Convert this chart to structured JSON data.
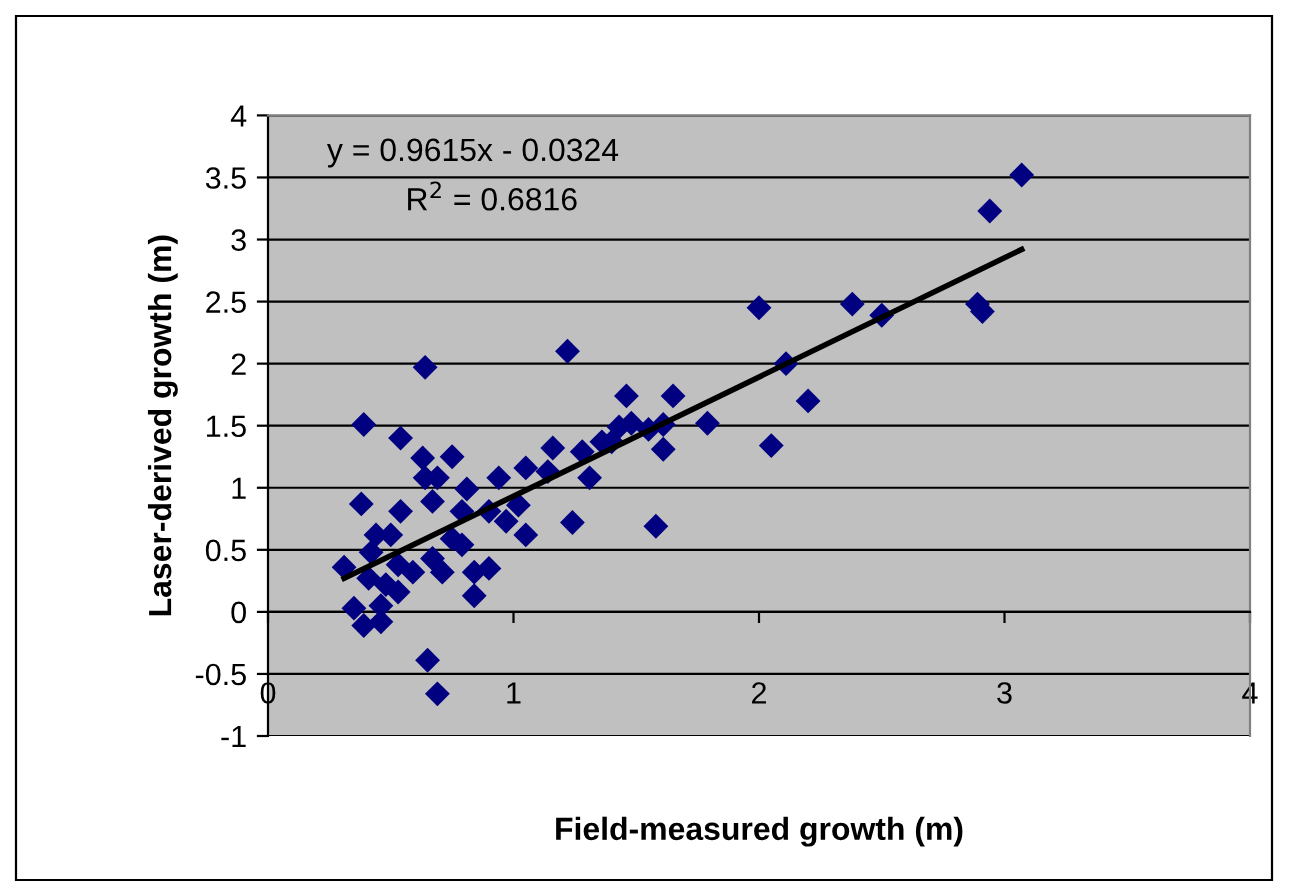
{
  "chart_data": {
    "type": "scatter",
    "xlabel": "Field-measured growth (m)",
    "ylabel": "Laser-derived growth (m)",
    "xlim": [
      0,
      4
    ],
    "ylim": [
      -1,
      4
    ],
    "xticks": [
      0,
      1,
      2,
      3,
      4
    ],
    "yticks": [
      -1,
      -0.5,
      0,
      0.5,
      1,
      1.5,
      2,
      2.5,
      3,
      3.5,
      4
    ],
    "grid": "y",
    "marker": "diamond",
    "legend": false,
    "annotations": [
      "y = 0.9615x - 0.0324",
      "R$^{2}$ = 0.6816"
    ],
    "series": [
      {
        "color": "#000080",
        "x": [
          3.07,
          2.94,
          2.89,
          2.91,
          2.38,
          2.5,
          2.0,
          2.11,
          2.2,
          2.05,
          1.79,
          1.65,
          1.46,
          1.61,
          1.61,
          1.58,
          1.55,
          1.48,
          1.43,
          1.4,
          1.36,
          1.28,
          1.31,
          1.24,
          1.22,
          1.16,
          1.14,
          1.05,
          1.05,
          1.02,
          0.97,
          0.94,
          0.9,
          0.9,
          0.84,
          0.84,
          0.81,
          0.79,
          0.79,
          0.75,
          0.75,
          0.71,
          0.69,
          0.67,
          0.64,
          0.63,
          0.64,
          0.67,
          0.65,
          0.69,
          0.59,
          0.53,
          0.54,
          0.54,
          0.5,
          0.44,
          0.42,
          0.41,
          0.48,
          0.46,
          0.46,
          0.38,
          0.39,
          0.31,
          0.35,
          0.39,
          0.53
        ],
        "values": [
          3.52,
          3.23,
          2.48,
          2.42,
          2.48,
          2.39,
          2.45,
          2.0,
          1.7,
          1.34,
          1.52,
          1.74,
          1.74,
          1.51,
          1.31,
          0.69,
          1.47,
          1.52,
          1.49,
          1.37,
          1.37,
          1.29,
          1.08,
          0.72,
          2.1,
          1.32,
          1.13,
          1.16,
          0.62,
          0.86,
          0.73,
          1.08,
          0.81,
          0.35,
          0.13,
          0.32,
          0.99,
          0.81,
          0.54,
          1.25,
          0.59,
          0.32,
          1.08,
          0.89,
          1.08,
          1.24,
          1.97,
          0.43,
          -0.39,
          -0.66,
          0.32,
          0.16,
          0.81,
          1.4,
          0.62,
          0.62,
          0.48,
          0.27,
          0.22,
          0.05,
          -0.08,
          0.87,
          1.51,
          0.36,
          0.03,
          -0.11,
          0.38
        ]
      },
      {
        "type": "line",
        "color": "#000000",
        "line_style": "solid",
        "marker": "none",
        "x": [
          0.31,
          3.07
        ],
        "values": [
          0.27,
          2.92
        ]
      }
    ]
  }
}
